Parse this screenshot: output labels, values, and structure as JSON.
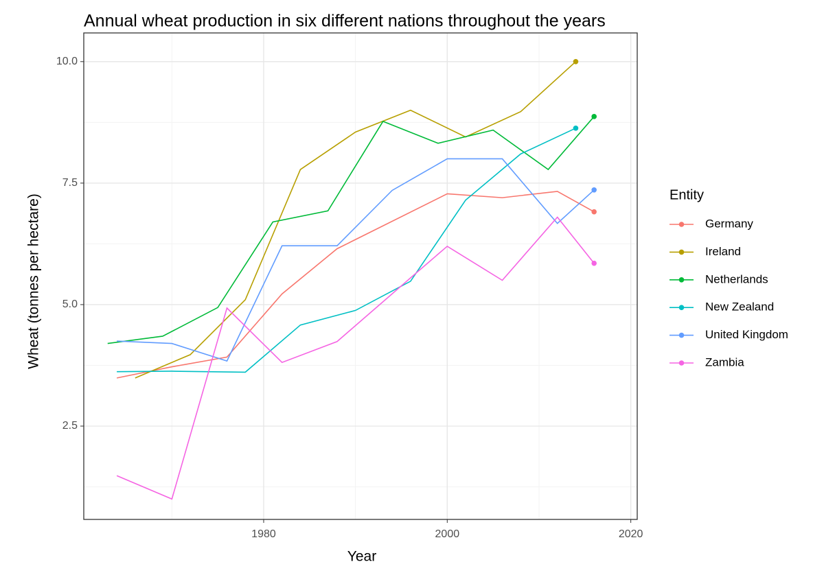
{
  "chart_data": {
    "type": "line",
    "title": "Annual wheat production in six different nations throughout the years",
    "x_label": "Year",
    "y_label": "Wheat (tonnes per hectare)",
    "legend_title": "Entity",
    "legend": "right",
    "grid": true,
    "xlim": [
      1960.4,
      2020.7
    ],
    "ylim": [
      0.58,
      10.59
    ],
    "xticks": [
      1980,
      2000,
      2020
    ],
    "yticks": [
      {
        "value": 10,
        "label": "10.0"
      },
      7.5,
      {
        "value": 5,
        "label": "5.0"
      },
      2.5
    ],
    "x_minor_grid": [
      1970,
      1990,
      2010
    ],
    "y_minor_grid": [
      1.25,
      3.75,
      6.25,
      8.75
    ],
    "series": [
      {
        "name": "Germany",
        "color": "#F8766D",
        "x": [
          1964,
          1970,
          1976,
          1982,
          1988,
          2000,
          2006,
          2012,
          2016
        ],
        "values": [
          3.49,
          3.72,
          3.92,
          5.22,
          6.15,
          7.28,
          7.2,
          7.33,
          6.91
        ]
      },
      {
        "name": "Ireland",
        "color": "#B79F00",
        "x": [
          1966,
          1972,
          1978,
          1984,
          1990,
          1996,
          2002,
          2008,
          2014
        ],
        "values": [
          3.49,
          3.97,
          5.1,
          7.78,
          8.55,
          9.0,
          8.45,
          8.97,
          10.0
        ]
      },
      {
        "name": "Netherlands",
        "color": "#00BA38",
        "x": [
          1963,
          1969,
          1975,
          1981,
          1987,
          1993,
          1999,
          2005,
          2011,
          2016
        ],
        "values": [
          4.2,
          4.35,
          4.94,
          6.7,
          6.93,
          8.77,
          8.32,
          8.59,
          7.78,
          8.87
        ]
      },
      {
        "name": "New Zealand",
        "color": "#00BFC4",
        "x": [
          1964,
          1970,
          1978,
          1984,
          1990,
          1996,
          2002,
          2008,
          2014
        ],
        "values": [
          3.62,
          3.63,
          3.61,
          4.58,
          4.88,
          5.48,
          7.15,
          8.1,
          8.63
        ]
      },
      {
        "name": "United Kingdom",
        "color": "#619CFF",
        "x": [
          1964,
          1970,
          1976,
          1982,
          1988,
          1994,
          2000,
          2006,
          2012,
          2016
        ],
        "values": [
          4.25,
          4.2,
          3.84,
          6.21,
          6.21,
          7.35,
          8.0,
          8.0,
          6.67,
          7.36
        ]
      },
      {
        "name": "Zambia",
        "color": "#F564E3",
        "x": [
          1964,
          1970,
          1976,
          1982,
          1988,
          1996,
          2000,
          2006,
          2012,
          2016
        ],
        "values": [
          1.48,
          1.0,
          4.93,
          3.81,
          4.24,
          5.55,
          6.2,
          5.5,
          6.8,
          5.85
        ]
      }
    ]
  }
}
